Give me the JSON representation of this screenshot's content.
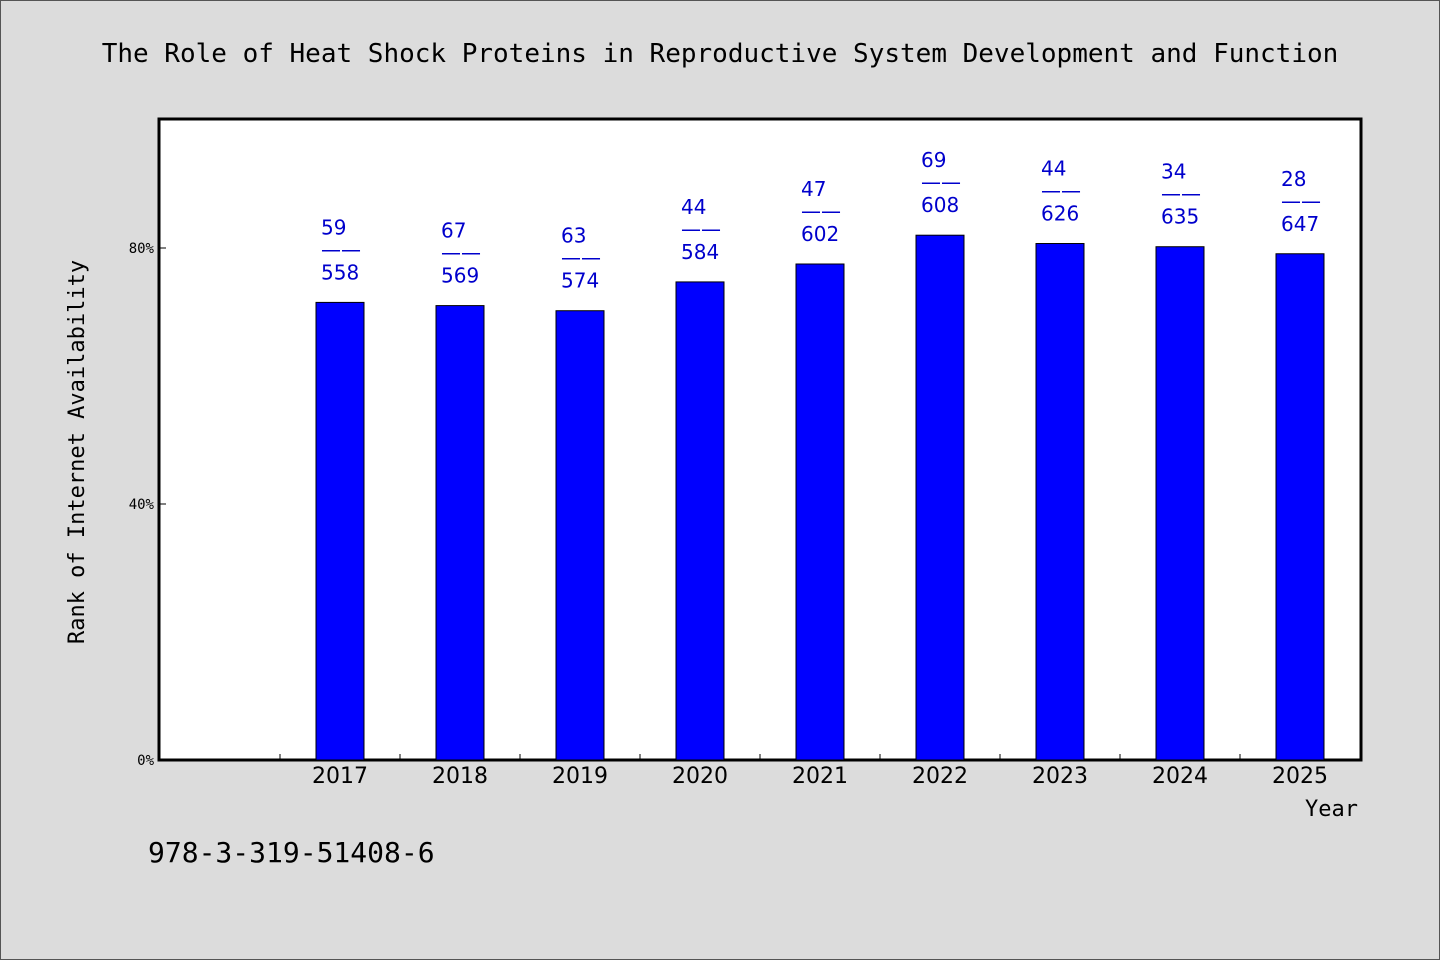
{
  "chart_data": {
    "type": "bar",
    "title": "The Role of Heat Shock Proteins in Reproductive System Development and Function",
    "xlabel": "Year",
    "ylabel": "Rank of Internet Availability",
    "categories": [
      "2017",
      "2018",
      "2019",
      "2020",
      "2021",
      "2022",
      "2023",
      "2024",
      "2025"
    ],
    "values": [
      71.5,
      71.0,
      70.2,
      74.7,
      77.5,
      82.0,
      80.7,
      80.2,
      79.1
    ],
    "data_labels": [
      [
        "59",
        "558"
      ],
      [
        "67",
        "569"
      ],
      [
        "63",
        "574"
      ],
      [
        "44",
        "584"
      ],
      [
        "47",
        "602"
      ],
      [
        "69",
        "608"
      ],
      [
        "44",
        "626"
      ],
      [
        "34",
        "635"
      ],
      [
        "28",
        "647"
      ]
    ],
    "label_separator": "——",
    "yticks": [
      0,
      40,
      80
    ],
    "ytick_labels": [
      "0%",
      "40%",
      "80%"
    ],
    "ylim": [
      0,
      100
    ],
    "bar_color": "#0000ff",
    "label_color": "#0000cc",
    "grid": false,
    "legend": "none"
  },
  "footnote": "978-3-319-51408-6"
}
